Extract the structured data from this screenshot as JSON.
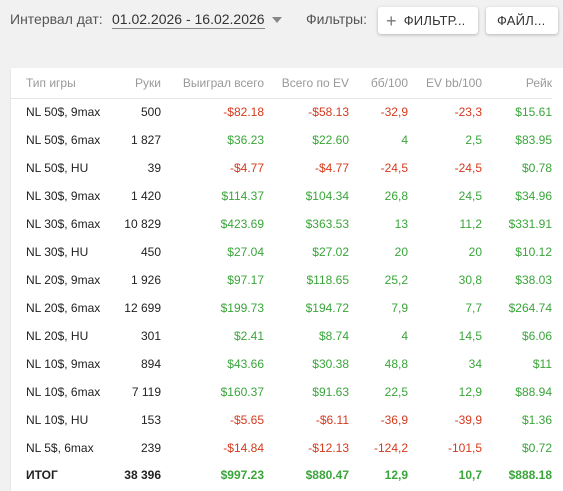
{
  "toolbar": {
    "date_label": "Интервал дат:",
    "date_range": "01.02.2026 - 16.02.2026",
    "filters_label": "Фильтры:",
    "filter_button": "ФИЛЬТР...",
    "file_button": "ФАЙЛ..."
  },
  "table": {
    "headers": [
      "Тип игры",
      "Руки",
      "Выиграл всего",
      "Всего по EV",
      "бб/100",
      "EV bb/100",
      "Рейк"
    ],
    "rows": [
      {
        "game": "NL 50$, 9max",
        "hands": "500",
        "won": "-$82.18",
        "ev": "-$58.13",
        "bb100": "-32,9",
        "evbb100": "-23,3",
        "rake": "$15.61"
      },
      {
        "game": "NL 50$, 6max",
        "hands": "1 827",
        "won": "$36.23",
        "ev": "$22.60",
        "bb100": "4",
        "evbb100": "2,5",
        "rake": "$83.95"
      },
      {
        "game": "NL 50$, HU",
        "hands": "39",
        "won": "-$4.77",
        "ev": "-$4.77",
        "bb100": "-24,5",
        "evbb100": "-24,5",
        "rake": "$0.78"
      },
      {
        "game": "NL 30$, 9max",
        "hands": "1 420",
        "won": "$114.37",
        "ev": "$104.34",
        "bb100": "26,8",
        "evbb100": "24,5",
        "rake": "$34.96"
      },
      {
        "game": "NL 30$, 6max",
        "hands": "10 829",
        "won": "$423.69",
        "ev": "$363.53",
        "bb100": "13",
        "evbb100": "11,2",
        "rake": "$331.91"
      },
      {
        "game": "NL 30$, HU",
        "hands": "450",
        "won": "$27.04",
        "ev": "$27.02",
        "bb100": "20",
        "evbb100": "20",
        "rake": "$10.12"
      },
      {
        "game": "NL 20$, 9max",
        "hands": "1 926",
        "won": "$97.17",
        "ev": "$118.65",
        "bb100": "25,2",
        "evbb100": "30,8",
        "rake": "$38.03"
      },
      {
        "game": "NL 20$, 6max",
        "hands": "12 699",
        "won": "$199.73",
        "ev": "$194.72",
        "bb100": "7,9",
        "evbb100": "7,7",
        "rake": "$264.74"
      },
      {
        "game": "NL 20$, HU",
        "hands": "301",
        "won": "$2.41",
        "ev": "$8.74",
        "bb100": "4",
        "evbb100": "14,5",
        "rake": "$6.06"
      },
      {
        "game": "NL 10$, 9max",
        "hands": "894",
        "won": "$43.66",
        "ev": "$30.38",
        "bb100": "48,8",
        "evbb100": "34",
        "rake": "$11"
      },
      {
        "game": "NL 10$, 6max",
        "hands": "7 119",
        "won": "$160.37",
        "ev": "$91.63",
        "bb100": "22,5",
        "evbb100": "12,9",
        "rake": "$88.94"
      },
      {
        "game": "NL 10$, HU",
        "hands": "153",
        "won": "-$5.65",
        "ev": "-$6.11",
        "bb100": "-36,9",
        "evbb100": "-39,9",
        "rake": "$1.36"
      },
      {
        "game": "NL 5$, 6max",
        "hands": "239",
        "won": "-$14.84",
        "ev": "-$12.13",
        "bb100": "-124,2",
        "evbb100": "-101,5",
        "rake": "$0.72"
      }
    ],
    "total": {
      "game": "ИТОГ",
      "hands": "38 396",
      "won": "$997.23",
      "ev": "$880.47",
      "bb100": "12,9",
      "evbb100": "10,7",
      "rake": "$888.18"
    }
  },
  "colors": {
    "positive": "#3aa53a",
    "negative": "#d43a1e"
  }
}
